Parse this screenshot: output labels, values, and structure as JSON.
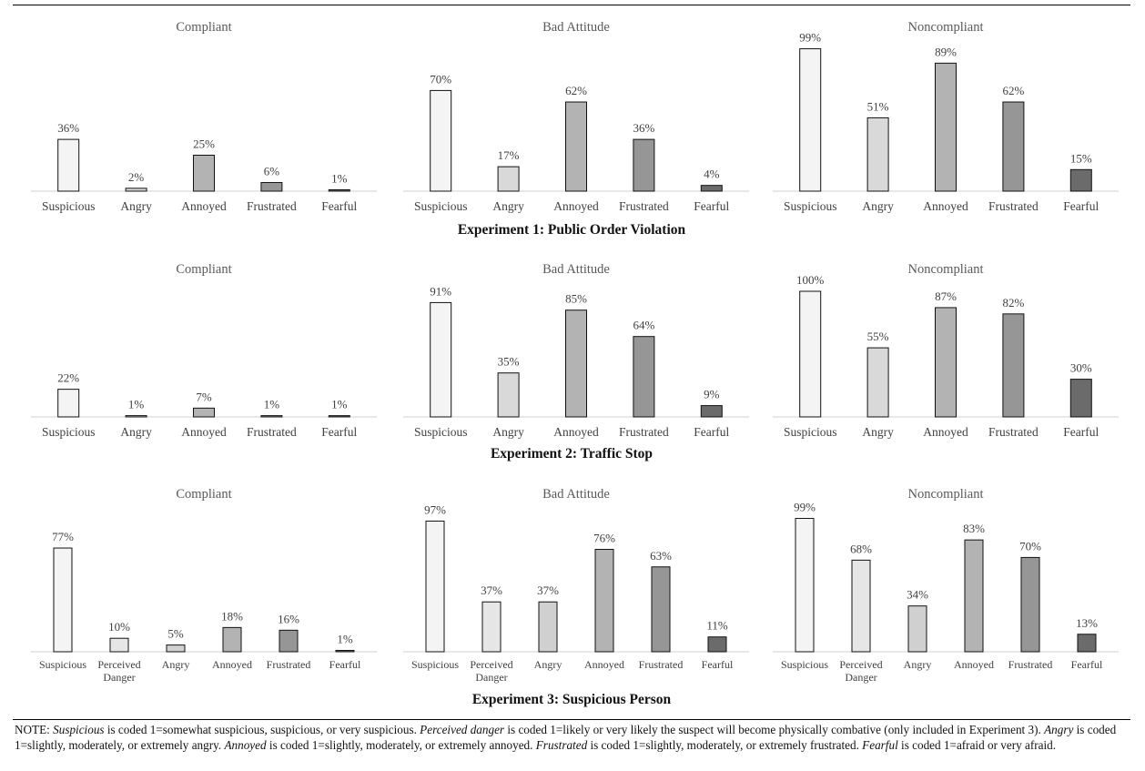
{
  "chart_data": [
    {
      "type": "bar",
      "title": "Compliant",
      "experiment": "Experiment 1: Public Order Violation",
      "categories": [
        "Suspicious",
        "Angry",
        "Annoyed",
        "Frustrated",
        "Fearful"
      ],
      "values": [
        36,
        2,
        25,
        6,
        1
      ],
      "value_labels": [
        "36%",
        "2%",
        "25%",
        "6%",
        "1%"
      ],
      "colors": [
        "#f4f4f4",
        "#d9d9d9",
        "#b3b3b3",
        "#969696",
        "#6b6b6b"
      ],
      "ylim": [
        0,
        100
      ]
    },
    {
      "type": "bar",
      "title": "Bad Attitude",
      "experiment": "Experiment 1: Public Order Violation",
      "categories": [
        "Suspicious",
        "Angry",
        "Annoyed",
        "Frustrated",
        "Fearful"
      ],
      "values": [
        70,
        17,
        62,
        36,
        4
      ],
      "value_labels": [
        "70%",
        "17%",
        "62%",
        "36%",
        "4%"
      ],
      "colors": [
        "#f4f4f4",
        "#d9d9d9",
        "#b3b3b3",
        "#969696",
        "#6b6b6b"
      ],
      "ylim": [
        0,
        100
      ]
    },
    {
      "type": "bar",
      "title": "Noncompliant",
      "experiment": "Experiment 1: Public Order Violation",
      "categories": [
        "Suspicious",
        "Angry",
        "Annoyed",
        "Frustrated",
        "Fearful"
      ],
      "values": [
        99,
        51,
        89,
        62,
        15
      ],
      "value_labels": [
        "99%",
        "51%",
        "89%",
        "62%",
        "15%"
      ],
      "colors": [
        "#f4f4f4",
        "#d9d9d9",
        "#b3b3b3",
        "#969696",
        "#6b6b6b"
      ],
      "ylim": [
        0,
        100
      ]
    },
    {
      "type": "bar",
      "title": "Compliant",
      "experiment": "Experiment 2: Traffic Stop",
      "categories": [
        "Suspicious",
        "Angry",
        "Annoyed",
        "Frustrated",
        "Fearful"
      ],
      "values": [
        22,
        1,
        7,
        1,
        1
      ],
      "value_labels": [
        "22%",
        "1%",
        "7%",
        "1%",
        "1%"
      ],
      "colors": [
        "#f4f4f4",
        "#d9d9d9",
        "#b3b3b3",
        "#969696",
        "#6b6b6b"
      ],
      "ylim": [
        0,
        100
      ]
    },
    {
      "type": "bar",
      "title": "Bad Attitude",
      "experiment": "Experiment 2: Traffic Stop",
      "categories": [
        "Suspicious",
        "Angry",
        "Annoyed",
        "Frustrated",
        "Fearful"
      ],
      "values": [
        91,
        35,
        85,
        64,
        9
      ],
      "value_labels": [
        "91%",
        "35%",
        "85%",
        "64%",
        "9%"
      ],
      "colors": [
        "#f4f4f4",
        "#d9d9d9",
        "#b3b3b3",
        "#969696",
        "#6b6b6b"
      ],
      "ylim": [
        0,
        100
      ]
    },
    {
      "type": "bar",
      "title": "Noncompliant",
      "experiment": "Experiment 2: Traffic Stop",
      "categories": [
        "Suspicious",
        "Angry",
        "Annoyed",
        "Frustrated",
        "Fearful"
      ],
      "values": [
        100,
        55,
        87,
        82,
        30
      ],
      "value_labels": [
        "100%",
        "55%",
        "87%",
        "82%",
        "30%"
      ],
      "colors": [
        "#f4f4f4",
        "#d9d9d9",
        "#b3b3b3",
        "#969696",
        "#6b6b6b"
      ],
      "ylim": [
        0,
        100
      ]
    },
    {
      "type": "bar",
      "title": "Compliant",
      "experiment": "Experiment 3: Suspicious Person",
      "categories": [
        "Suspicious",
        "Perceived Danger",
        "Angry",
        "Annoyed",
        "Frustrated",
        "Fearful"
      ],
      "values": [
        77,
        10,
        5,
        18,
        16,
        1
      ],
      "value_labels": [
        "77%",
        "10%",
        "5%",
        "18%",
        "16%",
        "1%"
      ],
      "colors": [
        "#f4f4f4",
        "#e6e6e6",
        "#d0d0d0",
        "#b3b3b3",
        "#969696",
        "#6b6b6b"
      ],
      "ylim": [
        0,
        100
      ]
    },
    {
      "type": "bar",
      "title": "Bad Attitude",
      "experiment": "Experiment 3: Suspicious Person",
      "categories": [
        "Suspicious",
        "Perceived Danger",
        "Angry",
        "Annoyed",
        "Frustrated",
        "Fearful"
      ],
      "values": [
        97,
        37,
        37,
        76,
        63,
        11
      ],
      "value_labels": [
        "97%",
        "37%",
        "37%",
        "76%",
        "63%",
        "11%"
      ],
      "colors": [
        "#f4f4f4",
        "#e6e6e6",
        "#d0d0d0",
        "#b3b3b3",
        "#969696",
        "#6b6b6b"
      ],
      "ylim": [
        0,
        100
      ]
    },
    {
      "type": "bar",
      "title": "Noncompliant",
      "experiment": "Experiment 3: Suspicious Person",
      "categories": [
        "Suspicious",
        "Perceived Danger",
        "Angry",
        "Annoyed",
        "Frustrated",
        "Fearful"
      ],
      "values": [
        99,
        68,
        34,
        83,
        70,
        13
      ],
      "value_labels": [
        "99%",
        "68%",
        "34%",
        "83%",
        "70%",
        "13%"
      ],
      "colors": [
        "#f4f4f4",
        "#e6e6e6",
        "#d0d0d0",
        "#b3b3b3",
        "#969696",
        "#6b6b6b"
      ],
      "ylim": [
        0,
        100
      ]
    }
  ],
  "experiments": [
    "Experiment 1: Public Order Violation",
    "Experiment 2: Traffic Stop",
    "Experiment 3: Suspicious Person"
  ],
  "note": {
    "prefix": "NOTE: ",
    "suspicious_term": "Suspicious",
    "suspicious_text": " is coded 1=somewhat suspicious, suspicious, or very suspicious.  ",
    "danger_term": "Perceived danger",
    "danger_text": " is coded 1=likely or very likely the suspect will become physically combative (only included in Experiment 3).  ",
    "angry_term": "Angry",
    "angry_text": " is coded 1=slightly, moderately, or extremely angry.  ",
    "annoyed_term": "Annoyed",
    "annoyed_text": " is coded 1=slightly, moderately, or extremely annoyed.  ",
    "frustrated_term": "Frustrated",
    "frustrated_text": " is coded 1=slightly, moderately, or extremely frustrated.  ",
    "fearful_term": "Fearful",
    "fearful_text": " is coded 1=afraid or very afraid."
  }
}
